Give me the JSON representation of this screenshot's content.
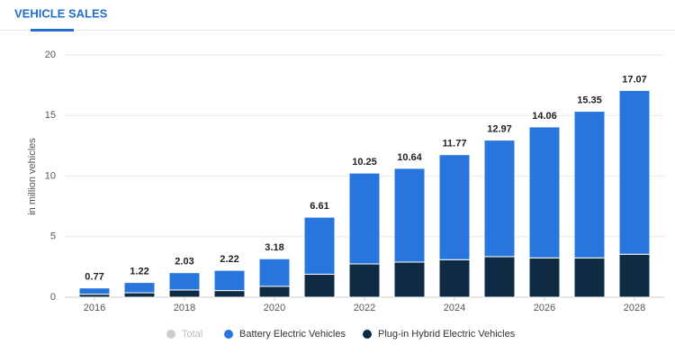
{
  "header": {
    "tab": "VEHICLE SALES"
  },
  "chart_data": {
    "type": "stacked-bar",
    "y_label": "in million vehicles",
    "categories": [
      "2016",
      null,
      "2018",
      null,
      "2020",
      null,
      "2022",
      null,
      "2024",
      null,
      "2026",
      null,
      "2028"
    ],
    "series": [
      {
        "name": "Total",
        "color": "#cccccc",
        "visible": false,
        "values": [
          0.77,
          1.22,
          2.03,
          2.22,
          3.18,
          6.61,
          10.25,
          10.64,
          11.77,
          12.97,
          14.06,
          15.35,
          17.07
        ]
      },
      {
        "name": "Battery Electric Vehicles",
        "color": "#2876dd",
        "values": [
          0.52,
          0.85,
          1.43,
          1.67,
          2.28,
          4.71,
          7.5,
          7.74,
          8.67,
          9.62,
          10.81,
          12.1,
          13.52
        ]
      },
      {
        "name": "Plug-in Hybrid Electric Vehicles",
        "color": "#0f2a43",
        "values": [
          0.25,
          0.37,
          0.6,
          0.55,
          0.9,
          1.9,
          2.75,
          2.9,
          3.1,
          3.35,
          3.25,
          3.25,
          3.55
        ]
      }
    ],
    "ylim": [
      0,
      20
    ],
    "yticks": [
      0,
      5,
      10,
      15,
      20
    ],
    "grid": true
  }
}
